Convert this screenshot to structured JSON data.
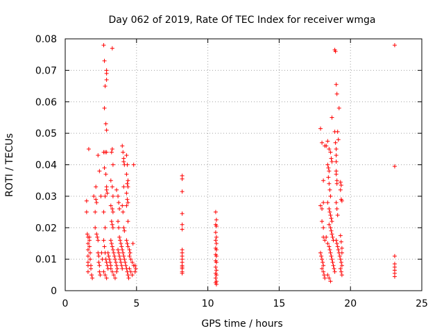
{
  "chart_data": {
    "type": "scatter",
    "title": "Day 062 of 2019, Rate Of TEC Index for receiver wmga",
    "xlabel": "GPS time / hours",
    "ylabel": "ROTI / TECUs",
    "xlim": [
      0,
      25
    ],
    "ylim": [
      0,
      0.08
    ],
    "xticks": [
      0,
      5,
      10,
      15,
      20,
      25
    ],
    "xtick_labels": [
      "0",
      "5",
      "10",
      "15",
      "20",
      "25"
    ],
    "yticks": [
      0,
      0.01,
      0.02,
      0.03,
      0.04,
      0.05,
      0.06,
      0.07,
      0.08
    ],
    "ytick_labels": [
      "0",
      "0.01",
      "0.02",
      "0.03",
      "0.04",
      "0.05",
      "0.06",
      "0.07",
      "0.08"
    ],
    "grid": true,
    "marker": "+",
    "color": "#ff0000",
    "series": [
      {
        "name": "ROTI",
        "points": [
          [
            1.5,
            0.0285
          ],
          [
            1.5,
            0.025
          ],
          [
            1.55,
            0.018
          ],
          [
            1.6,
            0.017
          ],
          [
            1.6,
            0.015
          ],
          [
            1.6,
            0.013
          ],
          [
            1.6,
            0.011
          ],
          [
            1.6,
            0.009
          ],
          [
            1.6,
            0.008
          ],
          [
            1.6,
            0.006
          ],
          [
            1.65,
            0.045
          ],
          [
            1.7,
            0.017
          ],
          [
            1.7,
            0.016
          ],
          [
            1.7,
            0.014
          ],
          [
            1.75,
            0.012
          ],
          [
            1.75,
            0.01
          ],
          [
            1.8,
            0.008
          ],
          [
            1.8,
            0.007
          ],
          [
            1.85,
            0.005
          ],
          [
            1.9,
            0.004
          ],
          [
            2.0,
            0.03
          ],
          [
            2.1,
            0.025
          ],
          [
            2.1,
            0.02
          ],
          [
            2.15,
            0.033
          ],
          [
            2.15,
            0.029
          ],
          [
            2.2,
            0.028
          ],
          [
            2.2,
            0.018
          ],
          [
            2.25,
            0.017
          ],
          [
            2.3,
            0.016
          ],
          [
            2.3,
            0.012
          ],
          [
            2.35,
            0.011
          ],
          [
            2.35,
            0.009
          ],
          [
            2.4,
            0.008
          ],
          [
            2.4,
            0.006
          ],
          [
            2.45,
            0.005
          ],
          [
            2.3,
            0.043
          ],
          [
            2.4,
            0.038
          ],
          [
            2.5,
            0.03
          ],
          [
            2.55,
            0.012
          ],
          [
            2.6,
            0.01
          ],
          [
            2.7,
            0.078
          ],
          [
            2.75,
            0.073
          ],
          [
            2.8,
            0.065
          ],
          [
            2.75,
            0.058
          ],
          [
            2.85,
            0.053
          ],
          [
            2.9,
            0.051
          ],
          [
            2.9,
            0.07
          ],
          [
            2.9,
            0.069
          ],
          [
            2.9,
            0.067
          ],
          [
            2.7,
            0.044
          ],
          [
            2.8,
            0.044
          ],
          [
            2.9,
            0.044
          ],
          [
            2.75,
            0.039
          ],
          [
            2.85,
            0.037
          ],
          [
            2.9,
            0.033
          ],
          [
            2.9,
            0.032
          ],
          [
            2.95,
            0.031
          ],
          [
            2.8,
            0.03
          ],
          [
            2.7,
            0.025
          ],
          [
            2.8,
            0.02
          ],
          [
            2.7,
            0.016
          ],
          [
            2.75,
            0.014
          ],
          [
            2.8,
            0.012
          ],
          [
            2.85,
            0.01
          ],
          [
            2.9,
            0.009
          ],
          [
            2.95,
            0.008
          ],
          [
            3.0,
            0.007
          ],
          [
            2.7,
            0.006
          ],
          [
            2.8,
            0.005
          ],
          [
            2.9,
            0.004
          ],
          [
            3.0,
            0.012
          ],
          [
            3.05,
            0.011
          ],
          [
            3.1,
            0.01
          ],
          [
            3.15,
            0.009
          ],
          [
            3.2,
            0.008
          ],
          [
            3.3,
            0.077
          ],
          [
            3.3,
            0.045
          ],
          [
            3.25,
            0.044
          ],
          [
            3.35,
            0.04
          ],
          [
            3.2,
            0.035
          ],
          [
            3.3,
            0.033
          ],
          [
            3.35,
            0.03
          ],
          [
            3.2,
            0.027
          ],
          [
            3.3,
            0.026
          ],
          [
            3.35,
            0.025
          ],
          [
            3.25,
            0.022
          ],
          [
            3.3,
            0.021
          ],
          [
            3.35,
            0.02
          ],
          [
            3.2,
            0.016
          ],
          [
            3.25,
            0.015
          ],
          [
            3.3,
            0.014
          ],
          [
            3.35,
            0.013
          ],
          [
            3.4,
            0.012
          ],
          [
            3.45,
            0.011
          ],
          [
            3.5,
            0.01
          ],
          [
            3.55,
            0.009
          ],
          [
            3.6,
            0.008
          ],
          [
            3.2,
            0.007
          ],
          [
            3.3,
            0.006
          ],
          [
            3.4,
            0.005
          ],
          [
            3.5,
            0.004
          ],
          [
            3.6,
            0.006
          ],
          [
            3.65,
            0.007
          ],
          [
            3.7,
            0.013
          ],
          [
            3.75,
            0.012
          ],
          [
            3.8,
            0.011
          ],
          [
            3.85,
            0.01
          ],
          [
            3.9,
            0.009
          ],
          [
            3.95,
            0.008
          ],
          [
            4.0,
            0.007
          ],
          [
            3.6,
            0.032
          ],
          [
            3.7,
            0.03
          ],
          [
            3.75,
            0.028
          ],
          [
            3.8,
            0.026
          ],
          [
            3.7,
            0.022
          ],
          [
            3.75,
            0.02
          ],
          [
            3.8,
            0.017
          ],
          [
            3.85,
            0.016
          ],
          [
            3.9,
            0.015
          ],
          [
            3.95,
            0.014
          ],
          [
            4.0,
            0.046
          ],
          [
            4.05,
            0.044
          ],
          [
            4.1,
            0.042
          ],
          [
            4.1,
            0.041
          ],
          [
            4.15,
            0.04
          ],
          [
            4.1,
            0.033
          ],
          [
            4.0,
            0.027
          ],
          [
            4.05,
            0.025
          ],
          [
            4.1,
            0.02
          ],
          [
            4.15,
            0.019
          ],
          [
            4.0,
            0.013
          ],
          [
            4.05,
            0.012
          ],
          [
            4.1,
            0.011
          ],
          [
            4.15,
            0.01
          ],
          [
            4.2,
            0.009
          ],
          [
            4.25,
            0.008
          ],
          [
            4.3,
            0.007
          ],
          [
            4.35,
            0.006
          ],
          [
            4.4,
            0.005
          ],
          [
            4.45,
            0.004
          ],
          [
            4.3,
            0.043
          ],
          [
            4.35,
            0.04
          ],
          [
            4.3,
            0.037
          ],
          [
            4.4,
            0.035
          ],
          [
            4.35,
            0.034
          ],
          [
            4.4,
            0.033
          ],
          [
            4.3,
            0.031
          ],
          [
            4.35,
            0.029
          ],
          [
            4.4,
            0.028
          ],
          [
            4.3,
            0.027
          ],
          [
            4.4,
            0.022
          ],
          [
            4.3,
            0.016
          ],
          [
            4.35,
            0.015
          ],
          [
            4.4,
            0.014
          ],
          [
            4.5,
            0.013
          ],
          [
            4.55,
            0.012
          ],
          [
            4.5,
            0.011
          ],
          [
            4.6,
            0.01
          ],
          [
            4.7,
            0.009
          ],
          [
            4.8,
            0.008
          ],
          [
            4.5,
            0.007
          ],
          [
            4.6,
            0.006
          ],
          [
            4.7,
            0.005
          ],
          [
            4.8,
            0.04
          ],
          [
            4.75,
            0.015
          ],
          [
            4.9,
            0.008
          ],
          [
            4.95,
            0.007
          ],
          [
            4.9,
            0.006
          ],
          [
            8.2,
            0.0365
          ],
          [
            8.2,
            0.0355
          ],
          [
            8.2,
            0.0315
          ],
          [
            8.2,
            0.0245
          ],
          [
            8.2,
            0.021
          ],
          [
            8.2,
            0.0195
          ],
          [
            8.2,
            0.013
          ],
          [
            8.2,
            0.012
          ],
          [
            8.2,
            0.011
          ],
          [
            8.2,
            0.01
          ],
          [
            8.2,
            0.009
          ],
          [
            8.2,
            0.008
          ],
          [
            8.2,
            0.0075
          ],
          [
            8.2,
            0.007
          ],
          [
            8.2,
            0.006
          ],
          [
            8.2,
            0.0055
          ],
          [
            10.55,
            0.025
          ],
          [
            10.6,
            0.0225
          ],
          [
            10.55,
            0.021
          ],
          [
            10.6,
            0.0205
          ],
          [
            10.55,
            0.0185
          ],
          [
            10.6,
            0.017
          ],
          [
            10.55,
            0.016
          ],
          [
            10.6,
            0.015
          ],
          [
            10.55,
            0.0135
          ],
          [
            10.6,
            0.013
          ],
          [
            10.55,
            0.0115
          ],
          [
            10.6,
            0.011
          ],
          [
            10.55,
            0.0095
          ],
          [
            10.6,
            0.009
          ],
          [
            10.55,
            0.0075
          ],
          [
            10.6,
            0.0065
          ],
          [
            10.55,
            0.0055
          ],
          [
            10.6,
            0.005
          ],
          [
            10.55,
            0.004
          ],
          [
            10.6,
            0.003
          ],
          [
            10.55,
            0.0025
          ],
          [
            10.6,
            0.002
          ],
          [
            17.9,
            0.0515
          ],
          [
            18.0,
            0.047
          ],
          [
            18.1,
            0.035
          ],
          [
            18.2,
            0.046
          ],
          [
            18.3,
            0.046
          ],
          [
            17.9,
            0.027
          ],
          [
            18.0,
            0.026
          ],
          [
            18.1,
            0.028
          ],
          [
            18.0,
            0.022
          ],
          [
            18.1,
            0.02
          ],
          [
            17.9,
            0.012
          ],
          [
            17.95,
            0.011
          ],
          [
            18.0,
            0.01
          ],
          [
            18.05,
            0.009
          ],
          [
            18.1,
            0.008
          ],
          [
            18.0,
            0.007
          ],
          [
            18.1,
            0.006
          ],
          [
            18.15,
            0.005
          ],
          [
            18.2,
            0.004
          ],
          [
            18.1,
            0.017
          ],
          [
            18.2,
            0.016
          ],
          [
            18.3,
            0.017
          ],
          [
            18.4,
            0.0475
          ],
          [
            18.5,
            0.045
          ],
          [
            18.4,
            0.04
          ],
          [
            18.45,
            0.039
          ],
          [
            18.5,
            0.038
          ],
          [
            18.45,
            0.036
          ],
          [
            18.5,
            0.034
          ],
          [
            18.55,
            0.032
          ],
          [
            18.6,
            0.03
          ],
          [
            18.7,
            0.055
          ],
          [
            18.6,
            0.044
          ],
          [
            18.65,
            0.042
          ],
          [
            18.7,
            0.041
          ],
          [
            18.4,
            0.028
          ],
          [
            18.5,
            0.026
          ],
          [
            18.55,
            0.025
          ],
          [
            18.6,
            0.024
          ],
          [
            18.65,
            0.023
          ],
          [
            18.7,
            0.022
          ],
          [
            18.5,
            0.021
          ],
          [
            18.6,
            0.02
          ],
          [
            18.65,
            0.019
          ],
          [
            18.7,
            0.018
          ],
          [
            18.75,
            0.017
          ],
          [
            18.8,
            0.016
          ],
          [
            18.4,
            0.015
          ],
          [
            18.5,
            0.014
          ],
          [
            18.55,
            0.013
          ],
          [
            18.6,
            0.012
          ],
          [
            18.65,
            0.011
          ],
          [
            18.7,
            0.01
          ],
          [
            18.75,
            0.009
          ],
          [
            18.8,
            0.008
          ],
          [
            18.85,
            0.007
          ],
          [
            18.9,
            0.006
          ],
          [
            18.4,
            0.005
          ],
          [
            18.5,
            0.004
          ],
          [
            18.6,
            0.003
          ],
          [
            18.9,
            0.0505
          ],
          [
            18.95,
            0.047
          ],
          [
            19.0,
            0.045
          ],
          [
            19.0,
            0.043
          ],
          [
            19.0,
            0.041
          ],
          [
            19.0,
            0.038
          ],
          [
            19.0,
            0.037
          ],
          [
            19.05,
            0.035
          ],
          [
            19.05,
            0.034
          ],
          [
            18.9,
            0.0765
          ],
          [
            18.95,
            0.076
          ],
          [
            19.0,
            0.0655
          ],
          [
            19.05,
            0.0625
          ],
          [
            19.2,
            0.058
          ],
          [
            19.1,
            0.0505
          ],
          [
            19.15,
            0.048
          ],
          [
            19.0,
            0.028
          ],
          [
            19.05,
            0.026
          ],
          [
            19.1,
            0.024
          ],
          [
            19.0,
            0.016
          ],
          [
            19.05,
            0.015
          ],
          [
            19.1,
            0.014
          ],
          [
            19.15,
            0.013
          ],
          [
            19.2,
            0.012
          ],
          [
            19.25,
            0.011
          ],
          [
            19.3,
            0.01
          ],
          [
            19.35,
            0.009
          ],
          [
            19.4,
            0.008
          ],
          [
            19.3,
            0.007
          ],
          [
            19.35,
            0.006
          ],
          [
            19.4,
            0.005
          ],
          [
            19.3,
            0.0345
          ],
          [
            19.35,
            0.0335
          ],
          [
            19.3,
            0.032
          ],
          [
            19.35,
            0.029
          ],
          [
            19.4,
            0.0285
          ],
          [
            19.3,
            0.0175
          ],
          [
            19.35,
            0.0155
          ],
          [
            19.4,
            0.0135
          ],
          [
            19.4,
            0.012
          ],
          [
            23.1,
            0.078
          ],
          [
            23.1,
            0.0395
          ],
          [
            23.1,
            0.011
          ],
          [
            23.1,
            0.0085
          ],
          [
            23.1,
            0.0075
          ],
          [
            23.1,
            0.0065
          ],
          [
            23.1,
            0.0055
          ],
          [
            23.1,
            0.0045
          ]
        ]
      }
    ]
  }
}
